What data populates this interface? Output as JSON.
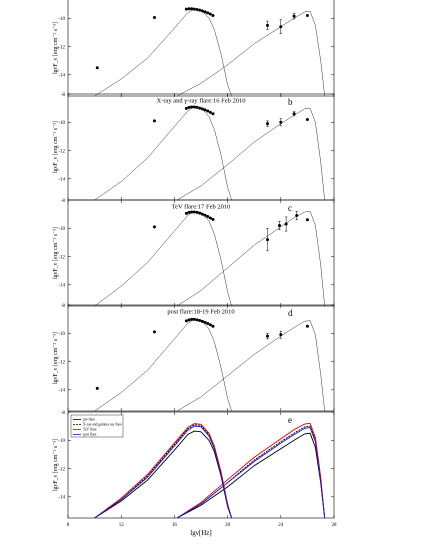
{
  "figure": {
    "xlabel": "lgν[Hz]",
    "ylabel": "lgνF_ν [erg cm⁻² s⁻¹]",
    "xticks": [
      8,
      12,
      16,
      20,
      24,
      28
    ],
    "xlim": [
      8,
      28
    ]
  },
  "legend": {
    "items": [
      {
        "label": "pre flare",
        "color": "#000000",
        "dash": ""
      },
      {
        "label": "X-ray and gamma ray flare",
        "color": "#000000",
        "dash": "2,1"
      },
      {
        "label": "TeV flare",
        "color": "#dd0000",
        "dash": ""
      },
      {
        "label": "post flare",
        "color": "#1a1acc",
        "dash": ""
      }
    ]
  },
  "chart_data": [
    {
      "type": "scatter",
      "letter": "",
      "title": "",
      "ylim": [
        -15.5,
        -8
      ],
      "yticks": [
        -10,
        -12,
        -14
      ],
      "points": [
        {
          "x": 10.2,
          "y": -13.5
        },
        {
          "x": 14.5,
          "y": -9.95
        },
        {
          "x": 16.9,
          "y": -9.35
        },
        {
          "x": 17.1,
          "y": -9.33
        },
        {
          "x": 17.3,
          "y": -9.33
        },
        {
          "x": 17.5,
          "y": -9.35
        },
        {
          "x": 17.7,
          "y": -9.38
        },
        {
          "x": 17.9,
          "y": -9.42
        },
        {
          "x": 18.1,
          "y": -9.48
        },
        {
          "x": 18.3,
          "y": -9.55
        },
        {
          "x": 18.5,
          "y": -9.62
        },
        {
          "x": 18.7,
          "y": -9.7
        },
        {
          "x": 18.9,
          "y": -9.8
        },
        {
          "x": 23.0,
          "y": -10.5,
          "err": 0.3
        },
        {
          "x": 24.0,
          "y": -10.6,
          "err": 0.5
        },
        {
          "x": 25.0,
          "y": -9.85,
          "err": 0.2
        },
        {
          "x": 26.0,
          "y": -9.8
        }
      ],
      "models": [
        {
          "name": "sync",
          "color": "#333333",
          "dash": "",
          "x": [
            10.0,
            12.0,
            14.0,
            16.0,
            17.0,
            17.5,
            18.0,
            18.6,
            19.0,
            19.5,
            20.0,
            20.3
          ],
          "y": [
            -15.5,
            -14.3,
            -12.8,
            -10.7,
            -9.6,
            -9.35,
            -9.4,
            -10.0,
            -10.8,
            -12.5,
            -14.7,
            -15.5
          ]
        },
        {
          "name": "ssc",
          "color": "#333333",
          "dash": "",
          "x": [
            16.2,
            18.0,
            20.0,
            22.0,
            24.0,
            25.0,
            25.8,
            26.2,
            26.6,
            27.0,
            27.3
          ],
          "y": [
            -15.5,
            -14.6,
            -13.3,
            -11.8,
            -10.6,
            -10.0,
            -9.55,
            -9.5,
            -10.5,
            -13.0,
            -15.5
          ]
        }
      ]
    },
    {
      "type": "scatter",
      "letter": "b",
      "title": "X-ray and γ-ray flare:16 Feb 2010",
      "ylim": [
        -15.5,
        -8
      ],
      "yticks": [
        -8,
        -10,
        -12,
        -14
      ],
      "points": [
        {
          "x": 14.5,
          "y": -9.9
        },
        {
          "x": 16.9,
          "y": -9.02
        },
        {
          "x": 17.1,
          "y": -8.95
        },
        {
          "x": 17.3,
          "y": -8.92
        },
        {
          "x": 17.5,
          "y": -8.92
        },
        {
          "x": 17.7,
          "y": -8.95
        },
        {
          "x": 17.9,
          "y": -9.0
        },
        {
          "x": 18.1,
          "y": -9.05
        },
        {
          "x": 18.3,
          "y": -9.12
        },
        {
          "x": 18.5,
          "y": -9.2
        },
        {
          "x": 18.7,
          "y": -9.3
        },
        {
          "x": 18.9,
          "y": -9.4
        },
        {
          "x": 23.0,
          "y": -10.1,
          "err": 0.2
        },
        {
          "x": 24.0,
          "y": -10.0,
          "err": 0.25
        },
        {
          "x": 25.0,
          "y": -9.4,
          "err": 0.15
        },
        {
          "x": 26.0,
          "y": -9.8
        }
      ],
      "models": [
        {
          "name": "sync",
          "color": "#333333",
          "dash": "",
          "x": [
            10.0,
            12.0,
            14.0,
            16.0,
            17.0,
            17.5,
            18.0,
            18.6,
            19.0,
            19.5,
            20.0,
            20.3
          ],
          "y": [
            -15.5,
            -14.2,
            -12.5,
            -10.3,
            -9.2,
            -8.9,
            -8.95,
            -9.6,
            -10.5,
            -12.3,
            -14.6,
            -15.5
          ]
        },
        {
          "name": "ssc",
          "color": "#333333",
          "dash": "",
          "x": [
            16.2,
            18.0,
            20.0,
            22.0,
            24.0,
            25.0,
            25.8,
            26.2,
            26.6,
            27.0,
            27.3
          ],
          "y": [
            -15.5,
            -14.5,
            -13.0,
            -11.4,
            -10.1,
            -9.5,
            -9.05,
            -9.0,
            -10.0,
            -12.8,
            -15.5
          ]
        }
      ]
    },
    {
      "type": "scatter",
      "letter": "c",
      "title": "TeV flare:17 Feb 2010",
      "ylim": [
        -15.5,
        -8
      ],
      "yticks": [
        -8,
        -10,
        -12,
        -14
      ],
      "points": [
        {
          "x": 14.5,
          "y": -9.9
        },
        {
          "x": 16.9,
          "y": -8.95
        },
        {
          "x": 17.1,
          "y": -8.88
        },
        {
          "x": 17.3,
          "y": -8.85
        },
        {
          "x": 17.5,
          "y": -8.85
        },
        {
          "x": 17.7,
          "y": -8.88
        },
        {
          "x": 17.9,
          "y": -8.93
        },
        {
          "x": 18.1,
          "y": -9.0
        },
        {
          "x": 18.3,
          "y": -9.08
        },
        {
          "x": 18.5,
          "y": -9.17
        },
        {
          "x": 18.7,
          "y": -9.27
        },
        {
          "x": 18.9,
          "y": -9.37
        },
        {
          "x": 23.0,
          "y": -10.8,
          "err": 0.8
        },
        {
          "x": 23.9,
          "y": -9.8,
          "err": 0.3
        },
        {
          "x": 24.4,
          "y": -9.7,
          "err": 0.5
        },
        {
          "x": 25.2,
          "y": -9.1,
          "err": 0.3
        },
        {
          "x": 26.0,
          "y": -9.4
        }
      ],
      "models": [
        {
          "name": "sync",
          "color": "#333333",
          "dash": "",
          "x": [
            10.0,
            12.0,
            14.0,
            16.0,
            17.0,
            17.5,
            18.0,
            18.6,
            19.0,
            19.5,
            20.0,
            20.3
          ],
          "y": [
            -15.5,
            -14.1,
            -12.4,
            -10.2,
            -9.1,
            -8.82,
            -8.87,
            -9.5,
            -10.4,
            -12.2,
            -14.5,
            -15.5
          ]
        },
        {
          "name": "ssc",
          "color": "#333333",
          "dash": "",
          "x": [
            16.2,
            18.0,
            20.0,
            22.0,
            24.0,
            25.0,
            25.8,
            26.2,
            26.6,
            27.0,
            27.3
          ],
          "y": [
            -15.5,
            -14.4,
            -12.8,
            -11.2,
            -9.9,
            -9.25,
            -8.85,
            -8.8,
            -9.8,
            -12.6,
            -15.5
          ]
        }
      ]
    },
    {
      "type": "scatter",
      "letter": "d",
      "title": "post flare:18-19 Feb 2010",
      "ylim": [
        -15.5,
        -8
      ],
      "yticks": [
        -8,
        -10,
        -12,
        -14
      ],
      "points": [
        {
          "x": 10.2,
          "y": -13.9
        },
        {
          "x": 14.5,
          "y": -9.9
        },
        {
          "x": 16.9,
          "y": -9.12
        },
        {
          "x": 17.1,
          "y": -9.05
        },
        {
          "x": 17.3,
          "y": -9.02
        },
        {
          "x": 17.5,
          "y": -9.02
        },
        {
          "x": 17.7,
          "y": -9.05
        },
        {
          "x": 17.9,
          "y": -9.1
        },
        {
          "x": 18.1,
          "y": -9.16
        },
        {
          "x": 18.3,
          "y": -9.23
        },
        {
          "x": 18.5,
          "y": -9.31
        },
        {
          "x": 18.7,
          "y": -9.4
        },
        {
          "x": 18.9,
          "y": -9.5
        },
        {
          "x": 23.0,
          "y": -10.2,
          "err": 0.2
        },
        {
          "x": 24.0,
          "y": -10.1,
          "err": 0.25
        },
        {
          "x": 26.0,
          "y": -9.5
        }
      ],
      "models": [
        {
          "name": "sync",
          "color": "#333333",
          "dash": "",
          "x": [
            10.0,
            12.0,
            14.0,
            16.0,
            17.0,
            17.5,
            18.0,
            18.6,
            19.0,
            19.5,
            20.0,
            20.3
          ],
          "y": [
            -15.5,
            -14.2,
            -12.6,
            -10.4,
            -9.3,
            -9.0,
            -9.05,
            -9.7,
            -10.6,
            -12.4,
            -14.6,
            -15.5
          ]
        },
        {
          "name": "ssc",
          "color": "#333333",
          "dash": "",
          "x": [
            16.2,
            18.0,
            20.0,
            22.0,
            24.0,
            25.0,
            25.8,
            26.2,
            26.6,
            27.0,
            27.3
          ],
          "y": [
            -15.5,
            -14.5,
            -13.0,
            -11.5,
            -10.2,
            -9.6,
            -9.15,
            -9.1,
            -10.1,
            -12.9,
            -15.5
          ]
        }
      ]
    },
    {
      "type": "line",
      "letter": "e",
      "title": "",
      "ylim": [
        -15.5,
        -8
      ],
      "yticks": [
        -8,
        -10,
        -12,
        -14
      ],
      "points": [],
      "models": [
        {
          "name": "pre flare",
          "color": "#000000",
          "dash": "",
          "x": [
            10.0,
            12.0,
            14.0,
            16.0,
            17.0,
            17.5,
            18.0,
            18.6,
            19.0,
            19.5,
            20.0,
            20.3
          ],
          "y": [
            -15.5,
            -14.3,
            -12.8,
            -10.7,
            -9.6,
            -9.35,
            -9.4,
            -10.0,
            -10.8,
            -12.5,
            -14.7,
            -15.5
          ]
        },
        {
          "name": "pre flare",
          "color": "#000000",
          "dash": "",
          "x": [
            16.2,
            18.0,
            20.0,
            22.0,
            24.0,
            25.0,
            25.8,
            26.2,
            26.6,
            27.0,
            27.3
          ],
          "y": [
            -15.5,
            -14.6,
            -13.3,
            -11.8,
            -10.6,
            -10.0,
            -9.55,
            -9.5,
            -10.5,
            -13.0,
            -15.5
          ]
        },
        {
          "name": "X-ray and gamma ray flare",
          "color": "#000000",
          "dash": "2,1",
          "x": [
            10.0,
            12.0,
            14.0,
            16.0,
            17.0,
            17.5,
            18.0,
            18.6,
            19.0,
            19.5,
            20.0,
            20.3
          ],
          "y": [
            -15.5,
            -14.2,
            -12.5,
            -10.3,
            -9.2,
            -8.9,
            -8.95,
            -9.6,
            -10.5,
            -12.3,
            -14.6,
            -15.5
          ]
        },
        {
          "name": "X-ray and gamma ray flare",
          "color": "#000000",
          "dash": "2,1",
          "x": [
            16.2,
            18.0,
            20.0,
            22.0,
            24.0,
            25.0,
            25.8,
            26.2,
            26.6,
            27.0,
            27.3
          ],
          "y": [
            -15.5,
            -14.5,
            -13.0,
            -11.4,
            -10.1,
            -9.5,
            -9.05,
            -9.0,
            -10.0,
            -12.8,
            -15.5
          ]
        },
        {
          "name": "TeV flare",
          "color": "#dd0000",
          "dash": "",
          "x": [
            10.0,
            12.0,
            14.0,
            16.0,
            17.0,
            17.5,
            18.0,
            18.6,
            19.0,
            19.5,
            20.0,
            20.3
          ],
          "y": [
            -15.5,
            -14.1,
            -12.4,
            -10.2,
            -9.1,
            -8.82,
            -8.87,
            -9.5,
            -10.4,
            -12.2,
            -14.5,
            -15.5
          ]
        },
        {
          "name": "TeV flare",
          "color": "#dd0000",
          "dash": "",
          "x": [
            16.2,
            18.0,
            20.0,
            22.0,
            24.0,
            25.0,
            25.8,
            26.2,
            26.6,
            27.0,
            27.3
          ],
          "y": [
            -15.5,
            -14.4,
            -12.8,
            -11.2,
            -9.9,
            -9.25,
            -8.85,
            -8.8,
            -9.8,
            -12.6,
            -15.5
          ]
        },
        {
          "name": "post flare",
          "color": "#1a1acc",
          "dash": "",
          "x": [
            10.0,
            12.0,
            14.0,
            16.0,
            17.0,
            17.5,
            18.0,
            18.6,
            19.0,
            19.5,
            20.0,
            20.3
          ],
          "y": [
            -15.5,
            -14.2,
            -12.6,
            -10.4,
            -9.3,
            -9.0,
            -9.05,
            -9.7,
            -10.6,
            -12.4,
            -14.6,
            -15.5
          ]
        },
        {
          "name": "post flare",
          "color": "#1a1acc",
          "dash": "",
          "x": [
            16.2,
            18.0,
            20.0,
            22.0,
            24.0,
            25.0,
            25.8,
            26.2,
            26.6,
            27.0,
            27.3
          ],
          "y": [
            -15.5,
            -14.5,
            -13.0,
            -11.5,
            -10.2,
            -9.6,
            -9.15,
            -9.1,
            -10.1,
            -12.9,
            -15.5
          ]
        }
      ]
    }
  ]
}
